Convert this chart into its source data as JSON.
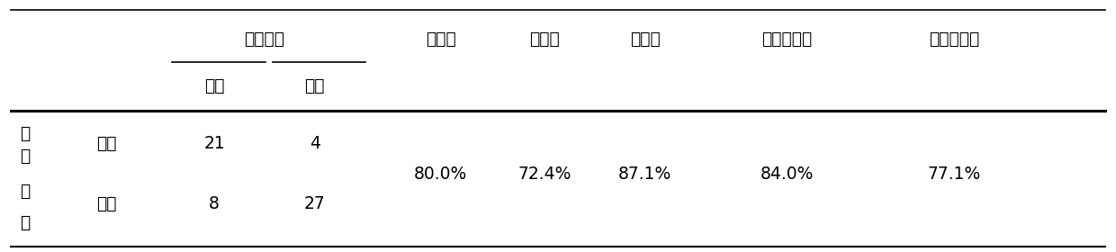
{
  "background_color": "#ffffff",
  "figsize": [
    12.4,
    2.8
  ],
  "dpi": 100,
  "header1_zhenshi": "真实情况",
  "header1_zhunque": "准确度",
  "header1_mingandu": "敏感度",
  "header1_teyidu": "特异度",
  "header1_yangce": "阳性预测値",
  "header1_yince": "阴性预测値",
  "header2_yang": "阳性",
  "header2_yin": "阴性",
  "left_label_chars": [
    "预",
    "测",
    "情",
    "况"
  ],
  "row1_sub": "阳性",
  "row2_sub": "阴性",
  "row1_v1": "21",
  "row1_v2": "4",
  "row2_v1": "8",
  "row2_v2": "27",
  "pct_zhunque": "80.0%",
  "pct_mingandu": "72.4%",
  "pct_teyidu": "87.1%",
  "pct_yangce": "84.0%",
  "pct_yince": "77.1%",
  "font_size": 13.5
}
